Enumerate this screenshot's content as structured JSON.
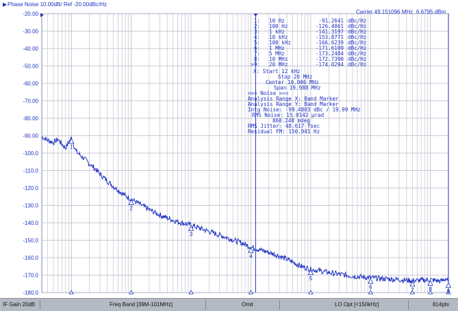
{
  "trace": {
    "title": "Phase Noise 10.00dB/ Ref -20.00dBc/Hz",
    "carrier": "Carrier 49.151096 MHz",
    "carrier_level": "6.6795 dBm",
    "ref_marker": "▶",
    "line_color": "#1c2fbf",
    "text_color": "#1c2fbf",
    "grid_color": "#b8b8c8"
  },
  "y_ticks": [
    "-20.00",
    "-30.00",
    "-40.00",
    "-50.00",
    "-60.00",
    "-70.00",
    "-80.00",
    "-90.00",
    "-100.0",
    "-110.0",
    "-120.0",
    "-130.0",
    "-140.0",
    "-150.0",
    "-160.0",
    "-170.0",
    "-180.0"
  ],
  "markers": [
    {
      "id": "1",
      "freq": "10 Hz",
      "value": "-91.2641",
      "unit": "dBc/Hz"
    },
    {
      "id": "2",
      "freq": "100 Hz",
      "value": "-126.4061",
      "unit": "dBc/Hz"
    },
    {
      "id": "3",
      "freq": "1 kHz",
      "value": "-141.3197",
      "unit": "dBc/Hz"
    },
    {
      "id": "4",
      "freq": "10 kHz",
      "value": "-153.8771",
      "unit": "dBc/Hz"
    },
    {
      "id": "5",
      "freq": "100 kHz",
      "value": "-166.6239",
      "unit": "dBc/Hz"
    },
    {
      "id": "6",
      "freq": "1 MHz",
      "value": "-171.6109",
      "unit": "dBc/Hz"
    },
    {
      "id": "7",
      "freq": "5 MHz",
      "value": "-173.2484",
      "unit": "dBc/Hz"
    },
    {
      "id": "8",
      "freq": "10 MHz",
      "value": "-172.7390",
      "unit": "dBc/Hz"
    },
    {
      "id": ">9",
      "freq": "20 MHz",
      "value": "-174.0294",
      "unit": "dBc/Hz"
    }
  ],
  "info_lines": [
    "X: Start 12 kHz",
    "Stop 20 MHz",
    "Center 10.006 MHz",
    "Span 19.988 MHz",
    "=== Noise ===",
    "Analysis Range X: Band Marker",
    "Analysis Range Y: Band Marker",
    "Intg Noise: -99.4803 dBc / 19.99 MHz",
    "RMS Noise: 15.0142 µrad",
    "860.248 mdeg",
    "RMS Jitter: 48.617 fsec",
    "Residual FM: 150.941 Hz"
  ],
  "status_bar": {
    "if_gain": "IF Gain 20dB",
    "freq_band": "Freq Band [39M-101MHz]",
    "omit": "Omit",
    "lo_opt": "LO Opt [<150kHz]",
    "points": "814pts"
  },
  "chart_data": {
    "type": "line",
    "title": "Phase Noise 10.00dB/ Ref -20.00dBc/Hz",
    "x_scale": "log",
    "xlim_hz": [
      3.2,
      20000000
    ],
    "ylim": [
      -180,
      -20
    ],
    "grid": true,
    "series": [
      {
        "points": [
          [
            3.2,
            -90.5
          ],
          [
            4,
            -92.5
          ],
          [
            5,
            -94
          ],
          [
            6,
            -92
          ],
          [
            7,
            -95
          ],
          [
            8,
            -97
          ],
          [
            10,
            -91.3
          ],
          [
            12,
            -99
          ],
          [
            15,
            -102
          ],
          [
            20,
            -106
          ],
          [
            25,
            -109
          ],
          [
            30,
            -112
          ],
          [
            40,
            -116
          ],
          [
            50,
            -119
          ],
          [
            60,
            -121
          ],
          [
            70,
            -123
          ],
          [
            80,
            -124.5
          ],
          [
            100,
            -126.4
          ],
          [
            150,
            -130
          ],
          [
            200,
            -132.5
          ],
          [
            300,
            -135.5
          ],
          [
            400,
            -137.2
          ],
          [
            500,
            -138.5
          ],
          [
            700,
            -140
          ],
          [
            1000,
            -141.3
          ],
          [
            2000,
            -145
          ],
          [
            3000,
            -147
          ],
          [
            5000,
            -149.7
          ],
          [
            7000,
            -151.5
          ],
          [
            10000,
            -153.9
          ],
          [
            20000,
            -157
          ],
          [
            30000,
            -159
          ],
          [
            50000,
            -162.5
          ],
          [
            70000,
            -165
          ],
          [
            100000,
            -166.6
          ],
          [
            200000,
            -168.5
          ],
          [
            300000,
            -169.5
          ],
          [
            500000,
            -170.5
          ],
          [
            1000000,
            -171.6
          ],
          [
            2000000,
            -172.2
          ],
          [
            3000000,
            -172.6
          ],
          [
            5000000,
            -173.2
          ],
          [
            7000000,
            -173
          ],
          [
            10000000,
            -172.7
          ],
          [
            15000000,
            -173.5
          ],
          [
            18000000,
            -172
          ],
          [
            20000000,
            -174
          ]
        ]
      }
    ],
    "markers": [
      {
        "label": "1",
        "x": 10,
        "y": -91.2641
      },
      {
        "label": "2",
        "x": 100,
        "y": -126.4061
      },
      {
        "label": "3",
        "x": 1000,
        "y": -141.3197
      },
      {
        "label": "4",
        "x": 10000,
        "y": -153.8771
      },
      {
        "label": "5",
        "x": 100000,
        "y": -166.6239
      },
      {
        "label": "6",
        "x": 1000000,
        "y": -171.6109
      },
      {
        "label": "7",
        "x": 5000000,
        "y": -173.2484
      },
      {
        "label": "8",
        "x": 10000000,
        "y": -172.739
      },
      {
        "label": "9",
        "x": 20000000,
        "y": -174.0294
      }
    ],
    "band_marker_start_hz": 12000
  }
}
